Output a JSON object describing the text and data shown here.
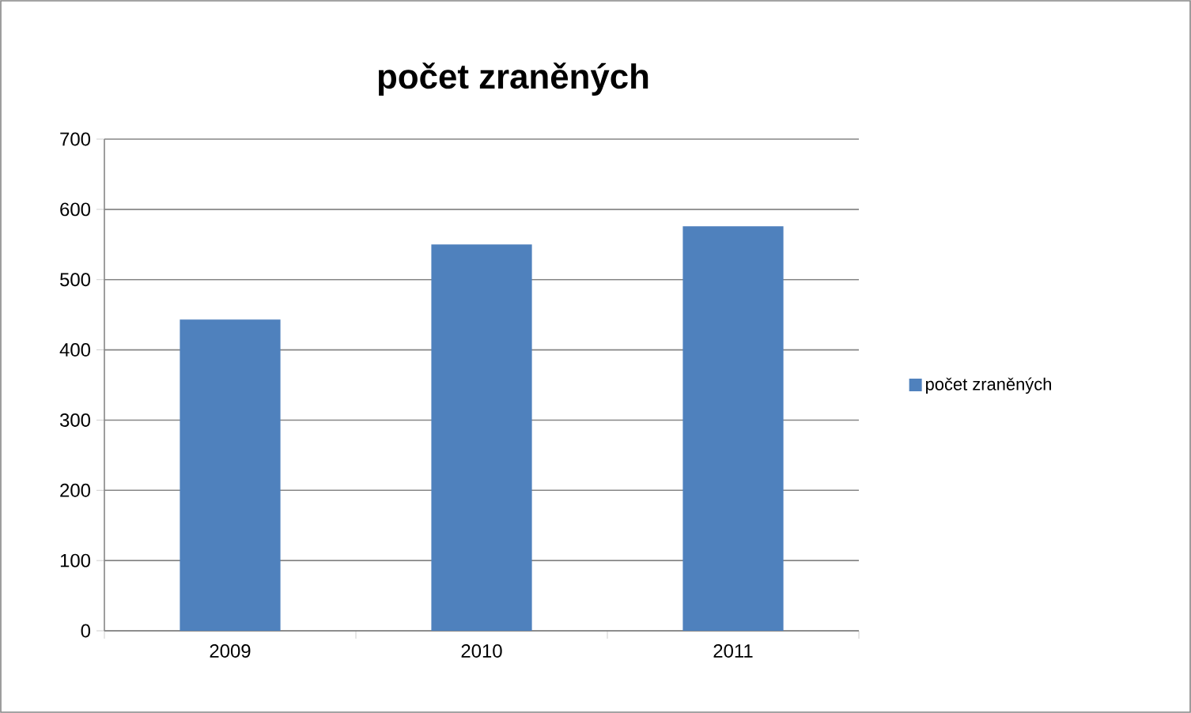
{
  "chart_data": {
    "type": "bar",
    "title": "počet zraněných",
    "categories": [
      "2009",
      "2010",
      "2011"
    ],
    "series": [
      {
        "name": "počet zraněných",
        "color": "#4f81bd",
        "values": [
          443,
          550,
          576
        ]
      }
    ],
    "ylim": [
      0,
      700
    ],
    "yticks": [
      0,
      100,
      200,
      300,
      400,
      500,
      600,
      700
    ],
    "grid": "y",
    "legend": "right"
  }
}
